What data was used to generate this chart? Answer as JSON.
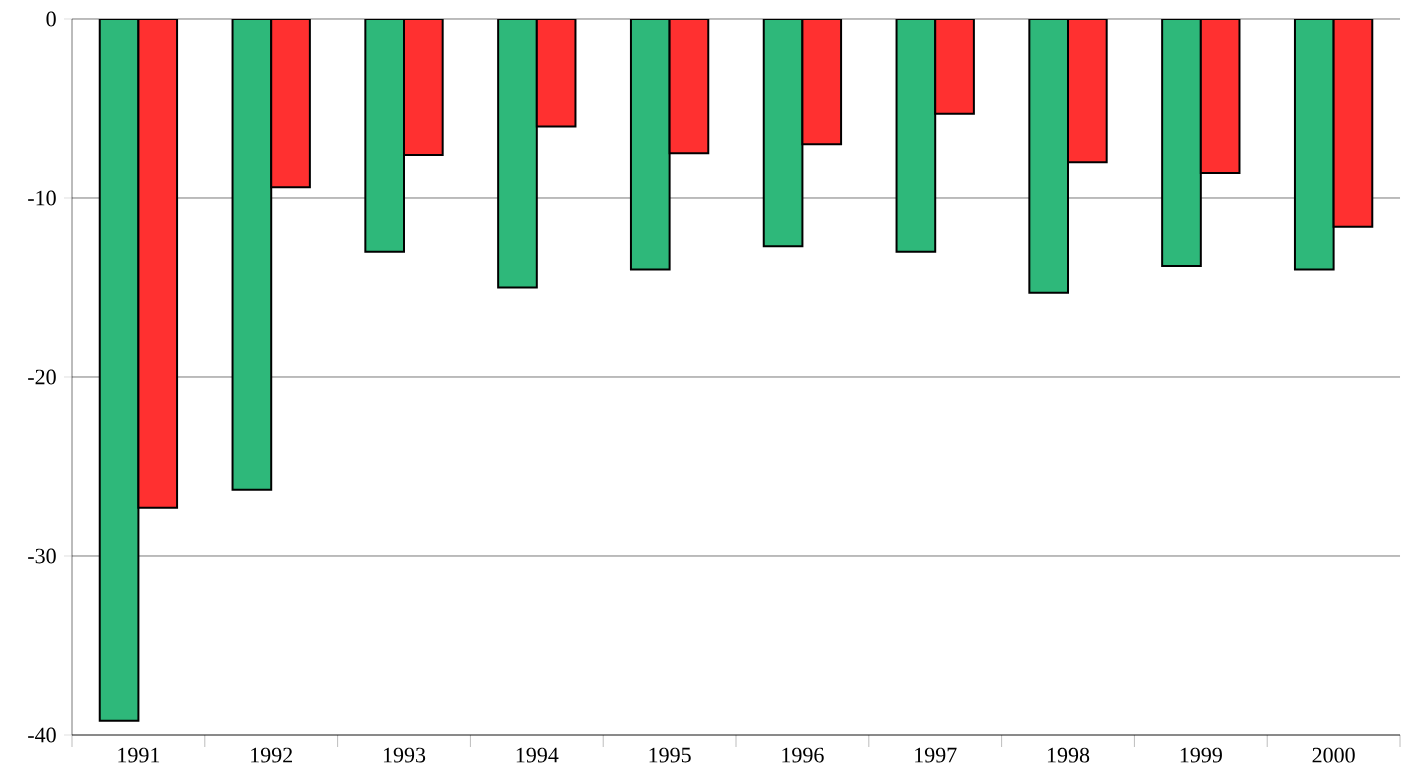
{
  "chart_data": {
    "type": "bar",
    "categories": [
      "1991",
      "1992",
      "1993",
      "1994",
      "1995",
      "1996",
      "1997",
      "1998",
      "1999",
      "2000"
    ],
    "series": [
      {
        "color": "#2eb87a",
        "values": [
          -39.2,
          -26.3,
          -13.0,
          -15.0,
          -14.0,
          -12.7,
          -13.0,
          -15.3,
          -13.8,
          -14.0
        ]
      },
      {
        "color": "#ff3030",
        "values": [
          -27.3,
          -9.4,
          -7.6,
          -6.0,
          -7.5,
          -7.0,
          -5.3,
          -8.0,
          -8.6,
          -11.6
        ]
      }
    ],
    "ylim": [
      -40,
      0
    ],
    "yticks": [
      0,
      -10,
      -20,
      -30,
      -40
    ],
    "grid": "y"
  }
}
